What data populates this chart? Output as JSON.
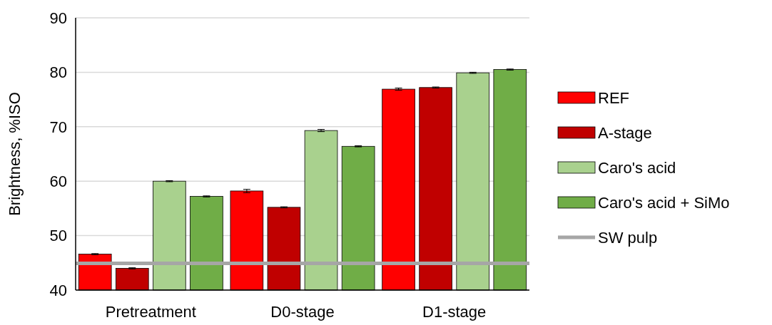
{
  "chart_data": {
    "type": "bar",
    "ylabel": "Brightness, %ISO",
    "categories": [
      "Pretreatment",
      "D0-stage",
      "D1-stage"
    ],
    "series": [
      {
        "name": "REF",
        "color": "#ff0000",
        "values": [
          46.6,
          58.2,
          76.9
        ],
        "errors": [
          0.1,
          0.3,
          0.2
        ]
      },
      {
        "name": "A-stage",
        "color": "#c00000",
        "values": [
          44.0,
          55.2,
          77.2
        ],
        "errors": [
          0.1,
          0.1,
          0.1
        ]
      },
      {
        "name": "Caro's acid",
        "color": "#a9d18e",
        "values": [
          60.0,
          69.3,
          79.9
        ],
        "errors": [
          0.1,
          0.2,
          0.1
        ]
      },
      {
        "name": "Caro's acid + SiMo",
        "color": "#70ad47",
        "values": [
          57.2,
          66.4,
          80.5
        ],
        "errors": [
          0.1,
          0.1,
          0.1
        ]
      }
    ],
    "ref_lines": [
      {
        "axis": "y",
        "value": 44.9,
        "label": "SW pulp",
        "color": "#a6a6a6"
      }
    ],
    "ylim": [
      40,
      90
    ],
    "yticks": [
      40,
      50,
      60,
      70,
      80,
      90
    ],
    "grid": "y",
    "legend": "right"
  }
}
